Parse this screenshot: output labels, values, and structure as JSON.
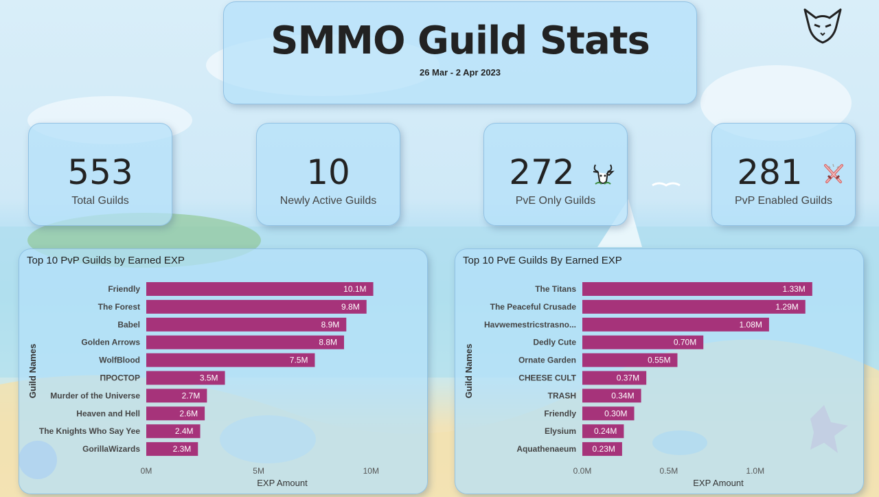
{
  "header": {
    "title": "SMMO Guild Stats",
    "date_range": "26 Mar - 2 Apr 2023"
  },
  "logo_icon": "cat-head-logo-icon",
  "kpis": [
    {
      "value": "553",
      "label": "Total Guilds",
      "icon": ""
    },
    {
      "value": "10",
      "label": "Newly Active Guilds",
      "icon": ""
    },
    {
      "value": "272",
      "label": "PvE Only Guilds",
      "icon": "goat-head-icon"
    },
    {
      "value": "281",
      "label": "PvP Enabled Guilds",
      "icon": "crossed-swords-icon"
    }
  ],
  "colors": {
    "bar": "#a6337a",
    "card": "#b4e1fa"
  },
  "chart_data": [
    {
      "type": "bar",
      "orientation": "horizontal",
      "title": "Top 10 PvP Guilds by Earned EXP",
      "xlabel": "EXP Amount",
      "ylabel": "Guild Names",
      "categories": [
        "Friendly",
        "The Forest",
        "Babel",
        "Golden Arrows",
        "WolfBlood",
        "ПРОСТОР",
        "Murder of the Universe",
        "Heaven and Hell",
        "The Knights Who Say Yee",
        "GorillaWizards"
      ],
      "values": [
        10100000,
        9800000,
        8900000,
        8800000,
        7500000,
        3500000,
        2700000,
        2600000,
        2400000,
        2300000
      ],
      "data_labels": [
        "10.1M",
        "9.8M",
        "8.9M",
        "8.8M",
        "7.5M",
        "3.5M",
        "2.7M",
        "2.6M",
        "2.4M",
        "2.3M"
      ],
      "xlim": [
        0,
        11000000
      ],
      "xticks": [
        0,
        5000000,
        10000000
      ],
      "xtick_labels": [
        "0M",
        "5M",
        "10M"
      ],
      "grid": false,
      "legend": "none"
    },
    {
      "type": "bar",
      "orientation": "horizontal",
      "title": "Top 10 PvE Guilds By Earned EXP",
      "xlabel": "EXP Amount",
      "ylabel": "Guild Names",
      "categories": [
        "The Titans",
        "The Peaceful Crusade",
        "Havwemestricstrasno...",
        "Dedly Cute",
        "Ornate Garden",
        "CHEESE CULT",
        "TRASH",
        "Friendly",
        "Elysium",
        "Aquathenaeum"
      ],
      "values": [
        1330000,
        1290000,
        1080000,
        700000,
        550000,
        370000,
        340000,
        300000,
        240000,
        230000
      ],
      "data_labels": [
        "1.33M",
        "1.29M",
        "1.08M",
        "0.70M",
        "0.55M",
        "0.37M",
        "0.34M",
        "0.30M",
        "0.24M",
        "0.23M"
      ],
      "xlim": [
        0,
        1430000
      ],
      "xticks": [
        0,
        500000,
        1000000
      ],
      "xtick_labels": [
        "0.0M",
        "0.5M",
        "1.0M"
      ],
      "grid": false,
      "legend": "none"
    }
  ]
}
